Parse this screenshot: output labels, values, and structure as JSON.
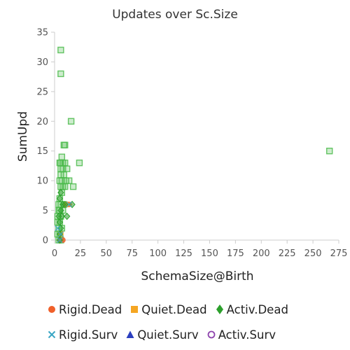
{
  "chart_data": {
    "type": "scatter",
    "title": "Updates over Sc.Size",
    "xlabel": "SchemaSize@Birth",
    "ylabel": "SumUpd",
    "xlim": [
      0,
      275
    ],
    "ylim": [
      0,
      35
    ],
    "xticks": [
      "0",
      "25",
      "50",
      "75",
      "100",
      "125",
      "150",
      "175",
      "200",
      "225",
      "250",
      "275"
    ],
    "yticks": [
      "0",
      "5",
      "10",
      "15",
      "20",
      "25",
      "30",
      "35"
    ],
    "grid": false,
    "legend_position": "bottom",
    "series": [
      {
        "name": "Rigid.Dead",
        "marker": "circle",
        "color": "#f0602a",
        "points": [
          [
            5,
            0
          ],
          [
            8,
            0
          ],
          [
            12,
            6
          ],
          [
            14,
            6
          ]
        ]
      },
      {
        "name": "Quiet.Dead",
        "marker": "square",
        "color": "#f5a623",
        "points": [
          [
            6,
            1
          ],
          [
            11,
            6
          ]
        ]
      },
      {
        "name": "Activ.Dead",
        "marker": "diamond",
        "color": "#2ca02c",
        "points": [
          [
            5,
            1
          ],
          [
            6,
            2
          ],
          [
            5,
            3
          ],
          [
            7,
            4
          ],
          [
            6,
            5
          ],
          [
            5,
            7
          ],
          [
            10,
            6
          ],
          [
            8,
            6
          ],
          [
            6,
            8
          ],
          [
            12,
            4
          ],
          [
            17,
            6
          ],
          [
            5,
            0
          ],
          [
            4,
            4
          ]
        ]
      },
      {
        "name": "Rigid.Surv",
        "marker": "x",
        "color": "#3aa6c4",
        "points": [
          [
            5,
            0
          ],
          [
            3,
            2
          ],
          [
            14,
            6
          ],
          [
            6,
            1
          ]
        ]
      },
      {
        "name": "Quiet.Surv",
        "marker": "triangle",
        "color": "#2b3fbf",
        "points": []
      },
      {
        "name": "Activ.Surv",
        "marker": "ring",
        "color": "#8e44ad",
        "points": []
      },
      {
        "name": "",
        "marker": "square",
        "color": "#4cbb4c",
        "points": [
          [
            6,
            32
          ],
          [
            6,
            28
          ],
          [
            16,
            20
          ],
          [
            9,
            16
          ],
          [
            10,
            16
          ],
          [
            266,
            15
          ],
          [
            7,
            14
          ],
          [
            5,
            13
          ],
          [
            6,
            13
          ],
          [
            8,
            13
          ],
          [
            10,
            13
          ],
          [
            24,
            13
          ],
          [
            6,
            12
          ],
          [
            8,
            12
          ],
          [
            12,
            12
          ],
          [
            6,
            11
          ],
          [
            9,
            11
          ],
          [
            5,
            10
          ],
          [
            7,
            10
          ],
          [
            11,
            10
          ],
          [
            14,
            10
          ],
          [
            6,
            9
          ],
          [
            8,
            9
          ],
          [
            10,
            9
          ],
          [
            18,
            9
          ],
          [
            7,
            8
          ],
          [
            5,
            7
          ],
          [
            4,
            6
          ],
          [
            6,
            6
          ],
          [
            9,
            6
          ],
          [
            4,
            5
          ],
          [
            5,
            5
          ],
          [
            8,
            5
          ],
          [
            3,
            4
          ],
          [
            6,
            4
          ],
          [
            3,
            3
          ],
          [
            5,
            3
          ],
          [
            4,
            2
          ],
          [
            7,
            2
          ],
          [
            3,
            1
          ],
          [
            5,
            1
          ],
          [
            4,
            0
          ],
          [
            6,
            0
          ]
        ]
      }
    ]
  },
  "legend": {
    "row1": [
      "Rigid.Dead",
      "Quiet.Dead",
      "Activ.Dead"
    ],
    "row2": [
      "Rigid.Surv",
      "Quiet.Surv",
      "Activ.Surv"
    ]
  }
}
